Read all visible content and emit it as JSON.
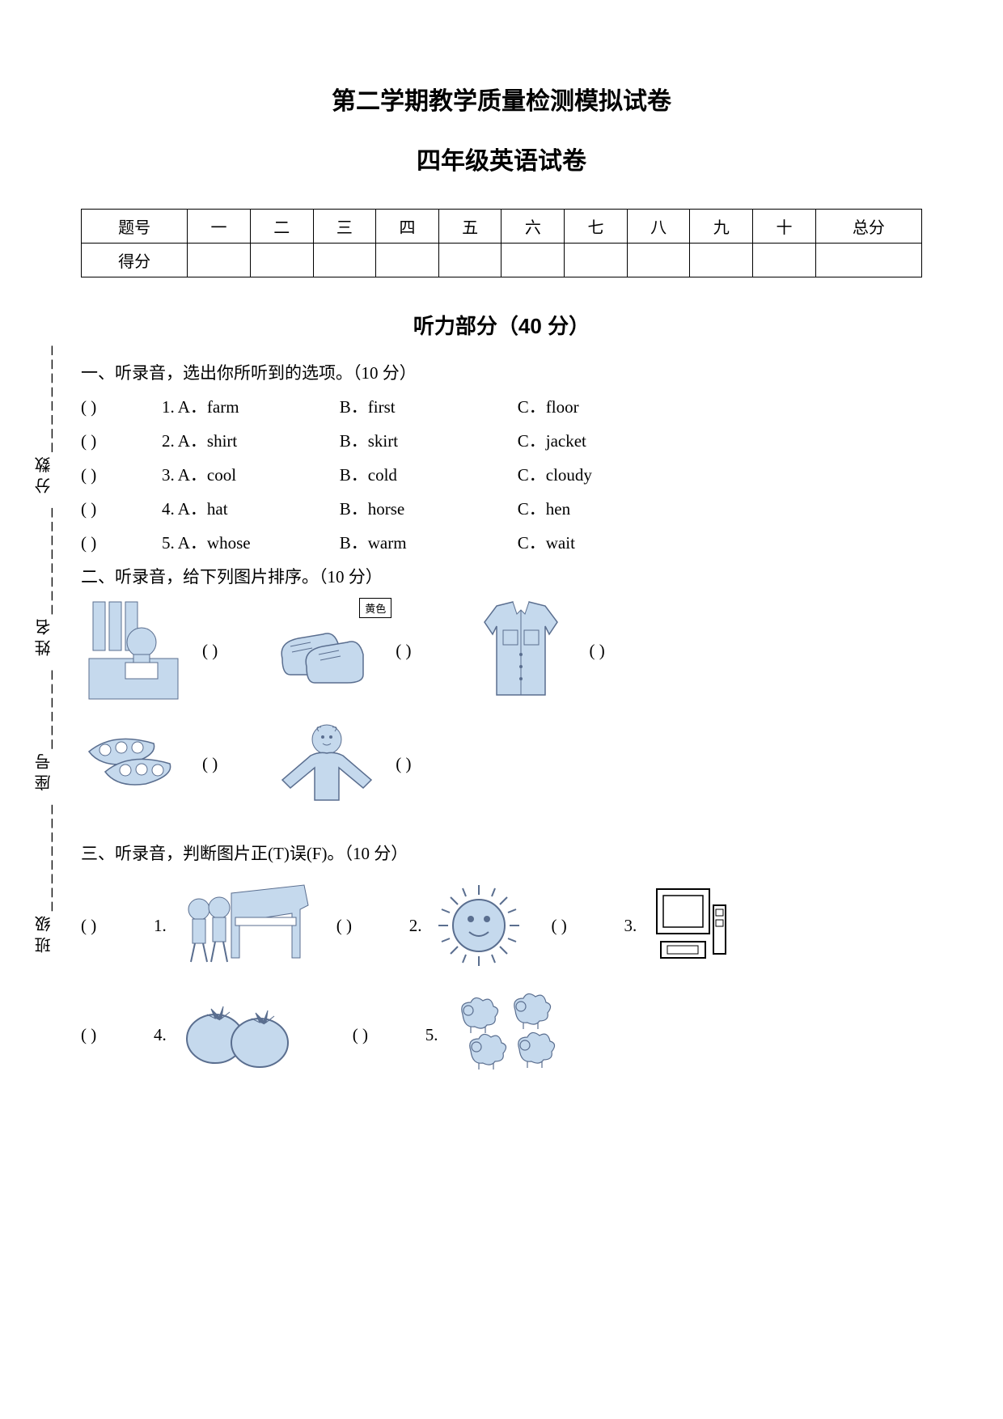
{
  "colors": {
    "text": "#000000",
    "bg": "#ffffff",
    "illus_fill": "#c5d9ed",
    "illus_stroke": "#5a6e8f",
    "border": "#000000"
  },
  "fonts": {
    "body": "SimSun",
    "heading": "SimHei",
    "title_size_pt": 22,
    "body_size_pt": 16
  },
  "sidebar": {
    "text": "班级________  座号______  姓名________  分数________"
  },
  "titles": {
    "main": "第二学期教学质量检测模拟试卷",
    "sub": "四年级英语试卷"
  },
  "score_table": {
    "headers": [
      "题号",
      "一",
      "二",
      "三",
      "四",
      "五",
      "六",
      "七",
      "八",
      "九",
      "十",
      "总分"
    ],
    "row_label": "得分"
  },
  "listening": {
    "header": "听力部分（40 分）",
    "q1": {
      "instruction": "一、听录音，选出你所听到的选项。（10 分）",
      "paren_template": "(        )",
      "items": [
        {
          "num": "1.",
          "a": "A．farm",
          "b": "B．first",
          "c": "C．floor"
        },
        {
          "num": "2.",
          "a": "A．shirt",
          "b": "B．skirt",
          "c": "C．jacket"
        },
        {
          "num": "3.",
          "a": "A．cool",
          "b": "B．cold",
          "c": "C．cloudy"
        },
        {
          "num": "4.",
          "a": "A．hat",
          "b": "B．horse",
          "c": "C．hen"
        },
        {
          "num": "5.",
          "a": "A．whose",
          "b": "B．warm",
          "c": "C．wait"
        }
      ]
    },
    "q2": {
      "instruction": "二、听录音，给下列图片排序。（10 分）",
      "paren": "(        )",
      "yellow_tag": "黄色",
      "images": [
        "girl-reading",
        "shoes",
        "shirt",
        "peas",
        "girl-coat"
      ]
    },
    "q3": {
      "instruction": "三、听录音，判断图片正(T)误(F)。（10 分）",
      "paren": "(        )",
      "items": [
        {
          "num": "1.",
          "img": "boys-piano"
        },
        {
          "num": "2.",
          "img": "sun"
        },
        {
          "num": "3.",
          "img": "computer"
        },
        {
          "num": "4.",
          "img": "tomatoes"
        },
        {
          "num": "5.",
          "img": "sheep"
        }
      ]
    }
  }
}
